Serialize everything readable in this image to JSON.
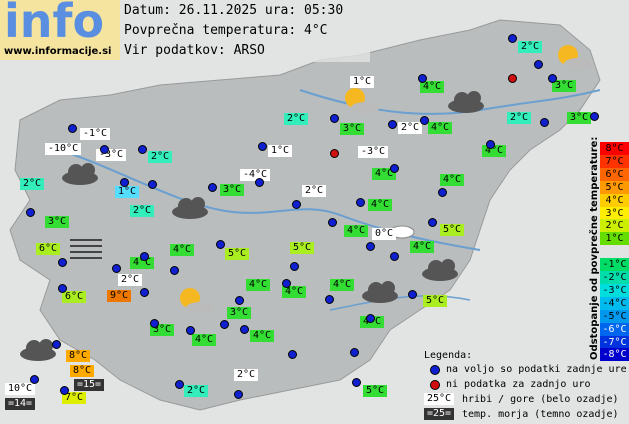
{
  "logo": {
    "text": "info",
    "url": "www.informacije.si"
  },
  "header": {
    "date": "Datum: 26.11.2025 ura: 05:30",
    "avg": "Povprečna temperatura: 4°C",
    "source": "Vir podatkov: ARSO"
  },
  "scale": {
    "title": "Odstopanje od povprečne temperature:",
    "items": [
      {
        "label": "8°C",
        "color": "#ff0000"
      },
      {
        "label": "7°C",
        "color": "#ff3300"
      },
      {
        "label": "6°C",
        "color": "#ff6600"
      },
      {
        "label": "5°C",
        "color": "#ff9900"
      },
      {
        "label": "4°C",
        "color": "#ffcc00"
      },
      {
        "label": "3°C",
        "color": "#ffee00"
      },
      {
        "label": "2°C",
        "color": "#ccee00"
      },
      {
        "label": "1°C",
        "color": "#66dd00"
      },
      {
        "label": "-1°C",
        "color": "#00dd66"
      },
      {
        "label": "-2°C",
        "color": "#00ddaa"
      },
      {
        "label": "-3°C",
        "color": "#00dddd"
      },
      {
        "label": "-4°C",
        "color": "#00bbee"
      },
      {
        "label": "-5°C",
        "color": "#0099ee"
      },
      {
        "label": "-6°C",
        "color": "#0066ee"
      },
      {
        "label": "-7°C",
        "color": "#0033dd"
      },
      {
        "label": "-8°C",
        "color": "#0000cc"
      }
    ]
  },
  "legend": {
    "title": "Legenda:",
    "available": "na voljo so podatki zadnje ure",
    "missing": "ni podatka za zadnjo uro",
    "mountain_sample": "25°C",
    "mountain": "hribi / gore (belo ozadje)",
    "sea_sample": "=25=",
    "sea": "temp. morja (temno ozadje)"
  },
  "stations": [
    {
      "text": "2°C",
      "color": "#33eebb"
    },
    {
      "text": "1°C",
      "color": "#ffffff"
    },
    {
      "text": "4°C",
      "color": "#33dd33"
    },
    {
      "text": "3°C",
      "color": "#33dd33"
    },
    {
      "text": "2°C",
      "color": "#33eebb"
    },
    {
      "text": "2°C",
      "color": "#33eebb"
    },
    {
      "text": "3°C",
      "color": "#33dd33"
    },
    {
      "text": "-1°C",
      "color": "#ffffff"
    },
    {
      "text": "3°C",
      "color": "#33dd33"
    },
    {
      "text": "2°C",
      "color": "#ffffff"
    },
    {
      "text": "4°C",
      "color": "#33dd33"
    },
    {
      "text": "-10°C",
      "color": "#ffffff"
    },
    {
      "text": "-3°C",
      "color": "#ffffff"
    },
    {
      "text": "2°C",
      "color": "#33eebb"
    },
    {
      "text": "1°C",
      "color": "#ffffff"
    },
    {
      "text": "-3°C",
      "color": "#ffffff"
    },
    {
      "text": "4°C",
      "color": "#33dd33"
    },
    {
      "text": "2°C",
      "color": "#33eebb"
    },
    {
      "text": "1°C",
      "color": "#55ddff"
    },
    {
      "text": "-4°C",
      "color": "#ffffff"
    },
    {
      "text": "3°C",
      "color": "#33dd33"
    },
    {
      "text": "2°C",
      "color": "#ffffff"
    },
    {
      "text": "4°C",
      "color": "#33dd33"
    },
    {
      "text": "4°C",
      "color": "#33dd33"
    },
    {
      "text": "2°C",
      "color": "#33eebb"
    },
    {
      "text": "4°C",
      "color": "#33dd33"
    },
    {
      "text": "3°C",
      "color": "#33dd33"
    },
    {
      "text": "4°C",
      "color": "#33dd33"
    },
    {
      "text": "0°C",
      "color": "#ffffff"
    },
    {
      "text": "5°C",
      "color": "#aaee22"
    },
    {
      "text": "6°C",
      "color": "#aaee22"
    },
    {
      "text": "4°C",
      "color": "#33dd33"
    },
    {
      "text": "5°C",
      "color": "#aaee22"
    },
    {
      "text": "5°C",
      "color": "#aaee22"
    },
    {
      "text": "4°C",
      "color": "#33dd33"
    },
    {
      "text": "4°C",
      "color": "#33dd33"
    },
    {
      "text": "2°C",
      "color": "#ffffff"
    },
    {
      "text": "4°C",
      "color": "#33dd33"
    },
    {
      "text": "4°C",
      "color": "#33dd33"
    },
    {
      "text": "4°C",
      "color": "#33dd33"
    },
    {
      "text": "6°C",
      "color": "#aaee22"
    },
    {
      "text": "9°C",
      "color": "#ee7700"
    },
    {
      "text": "5°C",
      "color": "#aaee22"
    },
    {
      "text": "3°C",
      "color": "#33dd33"
    },
    {
      "text": "3°C",
      "color": "#33dd33"
    },
    {
      "text": "4°C",
      "color": "#33dd33"
    },
    {
      "text": "4°C",
      "color": "#33dd33"
    },
    {
      "text": "4°C",
      "color": "#33dd33"
    },
    {
      "text": "8°C",
      "color": "#ffaa00"
    },
    {
      "text": "8°C",
      "color": "#ffaa00"
    },
    {
      "text": "=15=",
      "color": "#333333"
    },
    {
      "text": "2°C",
      "color": "#ffffff"
    },
    {
      "text": "10°C",
      "color": "#ffffff"
    },
    {
      "text": "7°C",
      "color": "#ddee00"
    },
    {
      "text": "=14=",
      "color": "#333333"
    },
    {
      "text": "2°C",
      "color": "#33eebb"
    },
    {
      "text": "5°C",
      "color": "#33dd33"
    }
  ]
}
